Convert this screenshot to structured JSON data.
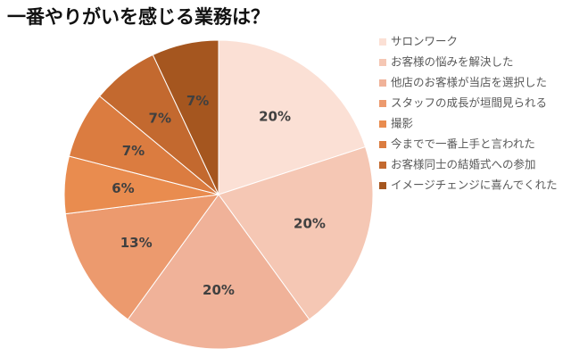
{
  "chart_data": {
    "type": "pie",
    "title": "一番やりがいを感じる業務は？",
    "categories": [
      "サロンワーク",
      "お客様の悩みを解決した",
      "他店のお客様が当店を選択した",
      "スタッフの成長が垣間見られる",
      "撮影",
      "今までで一番上手と言われた",
      "お客様同士の結婚式への参加",
      "イメージチェンジに喜んでくれた"
    ],
    "values": [
      20,
      20,
      20,
      13,
      6,
      7,
      7,
      7
    ],
    "value_labels": [
      "20%",
      "20%",
      "20%",
      "13%",
      "6%",
      "7%",
      "7%",
      "7%"
    ],
    "colors": [
      "#fbe0d5",
      "#f5c7b4",
      "#f0b299",
      "#ec9a6e",
      "#e98c4f",
      "#db7c40",
      "#c3692f",
      "#a5561f"
    ],
    "legend": "right"
  }
}
